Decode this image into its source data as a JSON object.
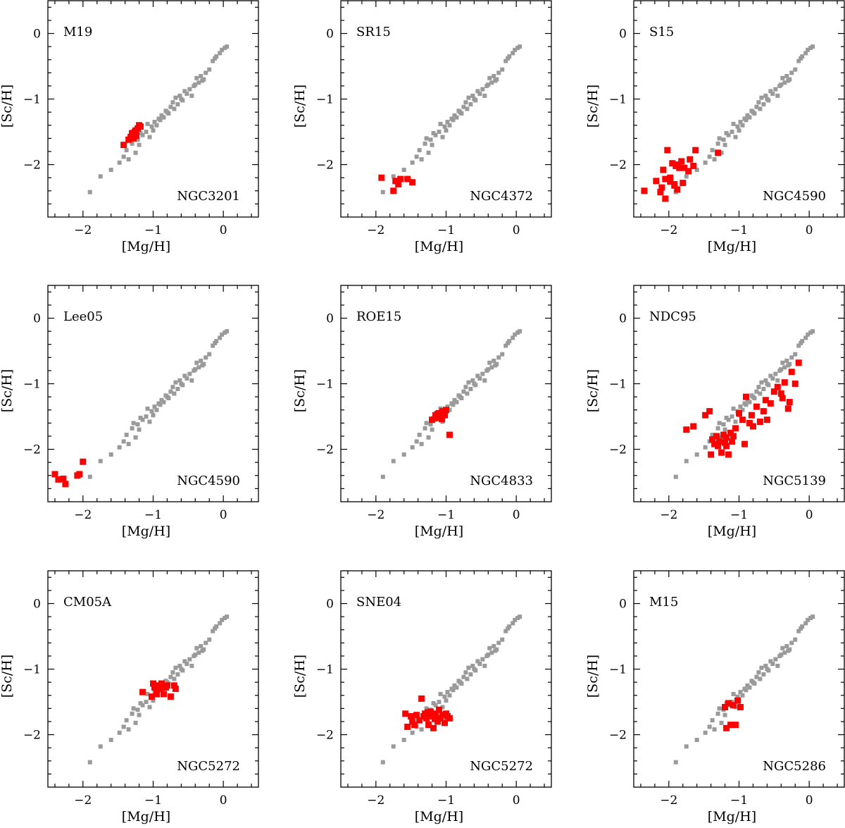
{
  "chart_data": {
    "type": "scatter",
    "layout": "3x3 grid",
    "xlabel": "[Mg/H]",
    "ylabel": "[Sc/H]",
    "xlim": [
      -2.5,
      0.5
    ],
    "ylim": [
      -2.8,
      0.5
    ],
    "xticks": [
      -2,
      -1,
      0
    ],
    "yticks": [
      -2,
      -1,
      0
    ],
    "x_tick_labels": [
      "−2",
      "−1",
      "0"
    ],
    "y_tick_labels": [
      "−2",
      "−1",
      "0"
    ],
    "colors": {
      "reference": "#9a9a9a",
      "highlight": "#ff0000"
    },
    "reference_series": {
      "x": [
        -1.9,
        -1.75,
        -1.6,
        -1.48,
        -1.42,
        -1.38,
        -1.35,
        -1.3,
        -1.25,
        -1.22,
        -1.2,
        -1.15,
        -1.1,
        -1.05,
        -1.02,
        -1.0,
        -0.98,
        -0.95,
        -0.9,
        -0.88,
        -0.85,
        -0.82,
        -0.78,
        -0.75,
        -0.72,
        -0.7,
        -0.68,
        -0.65,
        -0.62,
        -0.58,
        -0.55,
        -0.52,
        -0.48,
        -0.45,
        -0.42,
        -0.38,
        -0.35,
        -0.32,
        -0.28,
        -0.25,
        -0.2,
        -0.15,
        -0.12,
        -0.1,
        -0.05,
        -0.02,
        0.02,
        0.05,
        -1.28,
        -1.18,
        -1.08,
        -0.92,
        -0.8,
        -0.6,
        -0.4,
        -0.3
      ],
      "y": [
        -2.42,
        -2.18,
        -2.08,
        -1.97,
        -1.88,
        -1.78,
        -1.92,
        -1.68,
        -1.82,
        -1.62,
        -1.7,
        -1.55,
        -1.5,
        -1.58,
        -1.42,
        -1.48,
        -1.35,
        -1.4,
        -1.32,
        -1.25,
        -1.28,
        -1.18,
        -1.22,
        -1.12,
        -1.05,
        -1.15,
        -0.98,
        -1.08,
        -0.95,
        -1.02,
        -0.88,
        -0.92,
        -0.85,
        -0.95,
        -0.8,
        -0.68,
        -0.75,
        -0.65,
        -0.7,
        -0.6,
        -0.55,
        -0.42,
        -0.38,
        -0.35,
        -0.3,
        -0.25,
        -0.22,
        -0.2,
        -1.6,
        -1.52,
        -1.38,
        -1.3,
        -1.2,
        -1.0,
        -0.78,
        -0.72
      ]
    },
    "panels": [
      {
        "label": "M19",
        "cluster": "NGC3201",
        "x": [
          -1.42,
          -1.35,
          -1.32,
          -1.3,
          -1.28,
          -1.26,
          -1.25,
          -1.22,
          -1.2,
          -1.18,
          -1.3,
          -1.24
        ],
        "y": [
          -1.7,
          -1.62,
          -1.58,
          -1.55,
          -1.6,
          -1.5,
          -1.48,
          -1.45,
          -1.4,
          -1.42,
          -1.52,
          -1.56
        ]
      },
      {
        "label": "SR15",
        "cluster": "NGC4372",
        "x": [
          -1.92,
          -1.75,
          -1.72,
          -1.68,
          -1.65,
          -1.55,
          -1.48
        ],
        "y": [
          -2.2,
          -2.4,
          -2.25,
          -2.3,
          -2.22,
          -2.22,
          -2.27
        ]
      },
      {
        "label": "S15",
        "cluster": "NGC4590",
        "x": [
          -2.35,
          -2.18,
          -2.1,
          -2.08,
          -2.05,
          -2.02,
          -1.98,
          -1.95,
          -1.92,
          -1.9,
          -1.88,
          -1.85,
          -1.82,
          -1.8,
          -1.78,
          -1.72,
          -1.7,
          -1.65,
          -1.62,
          -1.3,
          -1.98,
          -1.92,
          -2.12,
          -2.05,
          -1.88
        ],
        "y": [
          -2.4,
          -2.25,
          -2.35,
          -2.08,
          -2.52,
          -1.78,
          -2.2,
          -1.98,
          -2.3,
          -2.02,
          -2.38,
          -2.05,
          -1.95,
          -2.28,
          -2.05,
          -2.1,
          -1.92,
          -2.02,
          -1.78,
          -1.82,
          -2.26,
          -2.32,
          -2.42,
          -2.22,
          -2.0
        ]
      },
      {
        "label": "Lee05",
        "cluster": "NGC4590",
        "x": [
          -2.4,
          -2.35,
          -2.28,
          -2.25,
          -2.08,
          -2.05,
          -2.0
        ],
        "y": [
          -2.38,
          -2.46,
          -2.45,
          -2.53,
          -2.4,
          -2.38,
          -2.19
        ]
      },
      {
        "label": "ROE15",
        "cluster": "NGC4833",
        "x": [
          -1.2,
          -1.15,
          -1.12,
          -1.1,
          -1.08,
          -1.05,
          -1.02,
          -1.0,
          -0.95,
          -1.12,
          -1.06
        ],
        "y": [
          -1.55,
          -1.48,
          -1.52,
          -1.45,
          -1.5,
          -1.42,
          -1.48,
          -1.4,
          -1.78,
          -1.46,
          -1.54
        ]
      },
      {
        "label": "NDC95",
        "cluster": "NGC5139",
        "x": [
          -1.75,
          -1.65,
          -1.42,
          -1.4,
          -1.38,
          -1.35,
          -1.32,
          -1.3,
          -1.28,
          -1.25,
          -1.22,
          -1.2,
          -1.18,
          -1.15,
          -1.12,
          -1.1,
          -1.05,
          -1.0,
          -0.95,
          -0.92,
          -0.9,
          -0.85,
          -0.82,
          -0.8,
          -0.75,
          -0.7,
          -0.65,
          -0.62,
          -0.6,
          -0.55,
          -0.5,
          -0.45,
          -0.4,
          -0.35,
          -0.3,
          -0.25,
          -0.2,
          -0.15,
          -0.28,
          -0.38,
          -1.48,
          -1.18,
          -1.08
        ],
        "y": [
          -1.7,
          -1.65,
          -1.42,
          -2.08,
          -1.85,
          -1.92,
          -1.8,
          -1.95,
          -1.88,
          -2.05,
          -1.78,
          -1.9,
          -1.82,
          -2.08,
          -1.75,
          -1.88,
          -1.68,
          -1.45,
          -1.55,
          -1.92,
          -1.2,
          -1.6,
          -1.48,
          -1.65,
          -1.35,
          -1.58,
          -1.42,
          -1.25,
          -1.55,
          -1.3,
          -1.12,
          -1.05,
          -1.15,
          -0.98,
          -1.38,
          -0.82,
          -1.0,
          -0.68,
          -1.28,
          -1.22,
          -1.48,
          -1.95,
          -1.8
        ]
      },
      {
        "label": "CM05A",
        "cluster": "NGC5272",
        "x": [
          -1.15,
          -1.02,
          -1.0,
          -0.98,
          -0.95,
          -0.92,
          -0.9,
          -0.88,
          -0.85,
          -0.82,
          -0.8,
          -0.75,
          -0.7,
          -0.68,
          -0.95,
          -0.88
        ],
        "y": [
          -1.35,
          -1.42,
          -1.22,
          -1.28,
          -1.38,
          -1.25,
          -1.3,
          -1.22,
          -1.38,
          -1.28,
          -1.25,
          -1.42,
          -1.25,
          -1.3,
          -1.32,
          -1.25
        ]
      },
      {
        "label": "SNE04",
        "cluster": "NGC5272",
        "x": [
          -1.58,
          -1.55,
          -1.5,
          -1.45,
          -1.42,
          -1.38,
          -1.35,
          -1.32,
          -1.3,
          -1.28,
          -1.25,
          -1.22,
          -1.2,
          -1.18,
          -1.15,
          -1.12,
          -1.1,
          -1.08,
          -1.05,
          -1.02,
          -1.0,
          -0.98,
          -0.95,
          -1.48,
          -1.26,
          -1.16
        ],
        "y": [
          -1.68,
          -1.88,
          -1.72,
          -1.85,
          -1.7,
          -1.78,
          -1.45,
          -1.72,
          -1.68,
          -1.75,
          -1.85,
          -1.65,
          -1.72,
          -1.9,
          -1.68,
          -1.8,
          -1.62,
          -1.75,
          -1.7,
          -1.82,
          -1.68,
          -1.72,
          -1.75,
          -1.8,
          -1.66,
          -1.76
        ],
        "marker_y_offsets_note": ""
      },
      {
        "label": "M15",
        "cluster": "NGC5286",
        "x": [
          -1.2,
          -1.18,
          -1.15,
          -1.12,
          -1.08,
          -1.05,
          -1.02,
          -0.98
        ],
        "y": [
          -1.58,
          -1.9,
          -1.52,
          -1.85,
          -1.55,
          -1.85,
          -1.48,
          -1.58
        ]
      }
    ]
  }
}
